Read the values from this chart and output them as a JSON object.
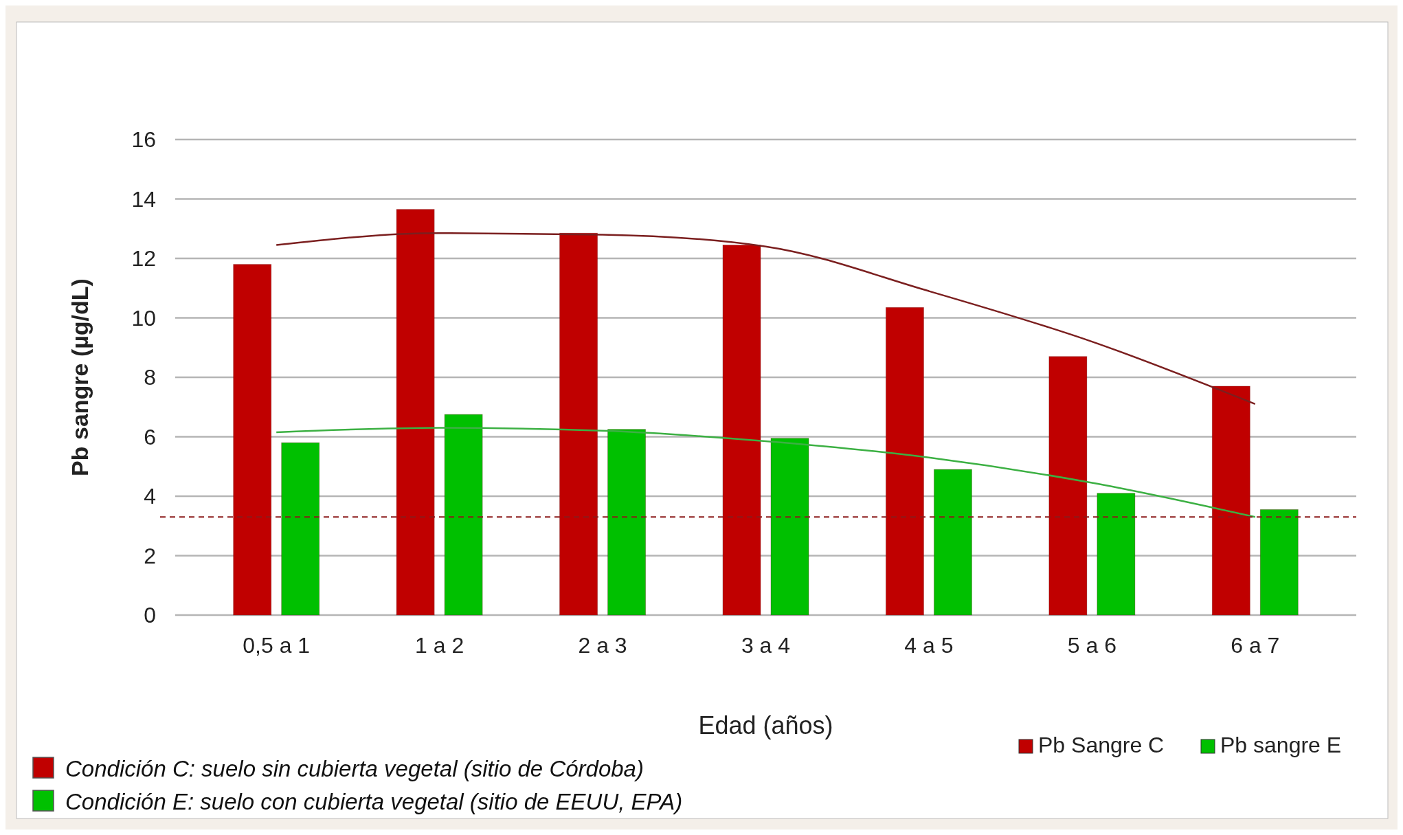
{
  "chart_data": {
    "type": "bar",
    "xlabel": "Edad (años)",
    "ylabel": "Pb sangre (µg/dL)",
    "categories": [
      "0,5 a 1",
      "1 a 2",
      "2 a 3",
      "3 a 4",
      "4 a 5",
      "5 a 6",
      "6 a 7"
    ],
    "series": [
      {
        "name": "Pb Sangre C",
        "color": "#c00000",
        "values": [
          11.8,
          13.65,
          12.85,
          12.45,
          10.35,
          8.7,
          7.7
        ]
      },
      {
        "name": "Pb sangre E",
        "color": "#00c000",
        "values": [
          5.8,
          6.75,
          6.25,
          5.95,
          4.9,
          4.1,
          3.55
        ]
      },
      {
        "type": "line",
        "color": "#7b1f1f",
        "values": [
          12.45,
          12.85,
          12.8,
          12.4,
          10.9,
          9.2,
          7.1
        ]
      },
      {
        "type": "line",
        "color": "#3cb043",
        "values": [
          6.15,
          6.3,
          6.2,
          5.85,
          5.3,
          4.45,
          3.3
        ]
      }
    ],
    "ylim": [
      0,
      16
    ],
    "yticks": [
      0,
      2,
      4,
      6,
      8,
      10,
      12,
      14,
      16
    ],
    "grid": "y",
    "legend": "bottom right",
    "ref_lines": [
      {
        "axis": "y",
        "value": 3.3,
        "color": "#8b1a1a",
        "line_style": "dashed"
      }
    ],
    "annotations": [
      "Condición C: suelo sin cubierta vegetal (sitio de Córdoba)",
      "Condición E: suelo con cubierta vegetal (sitio de EEUU, EPA)"
    ]
  }
}
